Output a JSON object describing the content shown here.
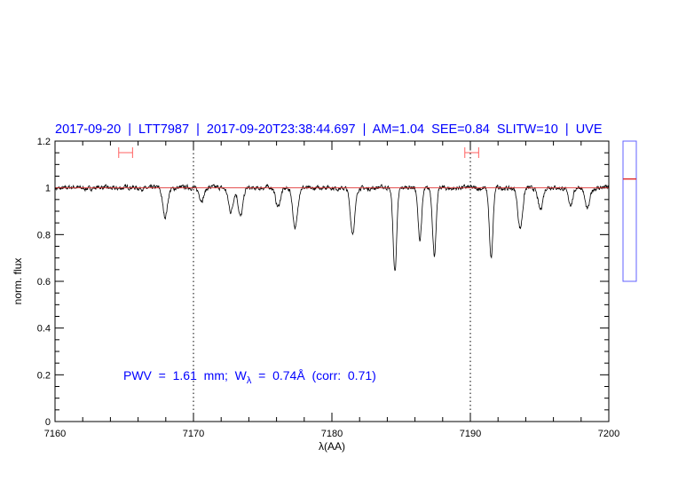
{
  "header": {
    "title": "2017-09-20  |  LTT7987  |  2017-09-20T23:38:44.697  |  AM=1.04  SEE=0.84  SLITW=10  |  UVE"
  },
  "colors": {
    "title": "#0000ff",
    "spectrum": "#000000",
    "continuum": "#e03030",
    "interval": "#ff6060",
    "side_box": "#6060ff",
    "side_marker": "#e03030"
  },
  "chart_data": {
    "type": "line",
    "title": "2017-09-20  |  LTT7987  |  2017-09-20T23:38:44.697  |  AM=1.04  SEE=0.84  SLITW=10  |  UVE",
    "xlabel": "λ(AA)",
    "ylabel": "norm. flux",
    "xlim": [
      7160,
      7200
    ],
    "ylim": [
      0,
      1.2
    ],
    "x_ticks": [
      "7160",
      "7170",
      "7180",
      "7190",
      "7200"
    ],
    "y_ticks": [
      "0",
      "0.2",
      "0.4",
      "0.6",
      "0.8",
      "1",
      "1.2"
    ],
    "continuum_level": 1.0,
    "vertical_markers": [
      7170,
      7190
    ],
    "intervals": [
      [
        7164.6,
        7165.6
      ],
      [
        7189.6,
        7190.6
      ]
    ],
    "absorption_minima": [
      {
        "x": 7167.95,
        "y": 0.877
      },
      {
        "x": 7170.6,
        "y": 0.95
      },
      {
        "x": 7172.7,
        "y": 0.9
      },
      {
        "x": 7173.4,
        "y": 0.874
      },
      {
        "x": 7176.1,
        "y": 0.92
      },
      {
        "x": 7177.35,
        "y": 0.824
      },
      {
        "x": 7181.5,
        "y": 0.805
      },
      {
        "x": 7184.55,
        "y": 0.646
      },
      {
        "x": 7186.35,
        "y": 0.78
      },
      {
        "x": 7187.4,
        "y": 0.71
      },
      {
        "x": 7191.5,
        "y": 0.695
      },
      {
        "x": 7193.6,
        "y": 0.824
      },
      {
        "x": 7195.06,
        "y": 0.91
      },
      {
        "x": 7197.25,
        "y": 0.93
      },
      {
        "x": 7198.45,
        "y": 0.91
      }
    ],
    "annotation": {
      "prefix": "PWV  =  1.61  mm;  W",
      "sub": "λ",
      "suffix": "  =  0.74Å  (corr:  0.71)"
    },
    "side_indicator_level": 0.73
  }
}
